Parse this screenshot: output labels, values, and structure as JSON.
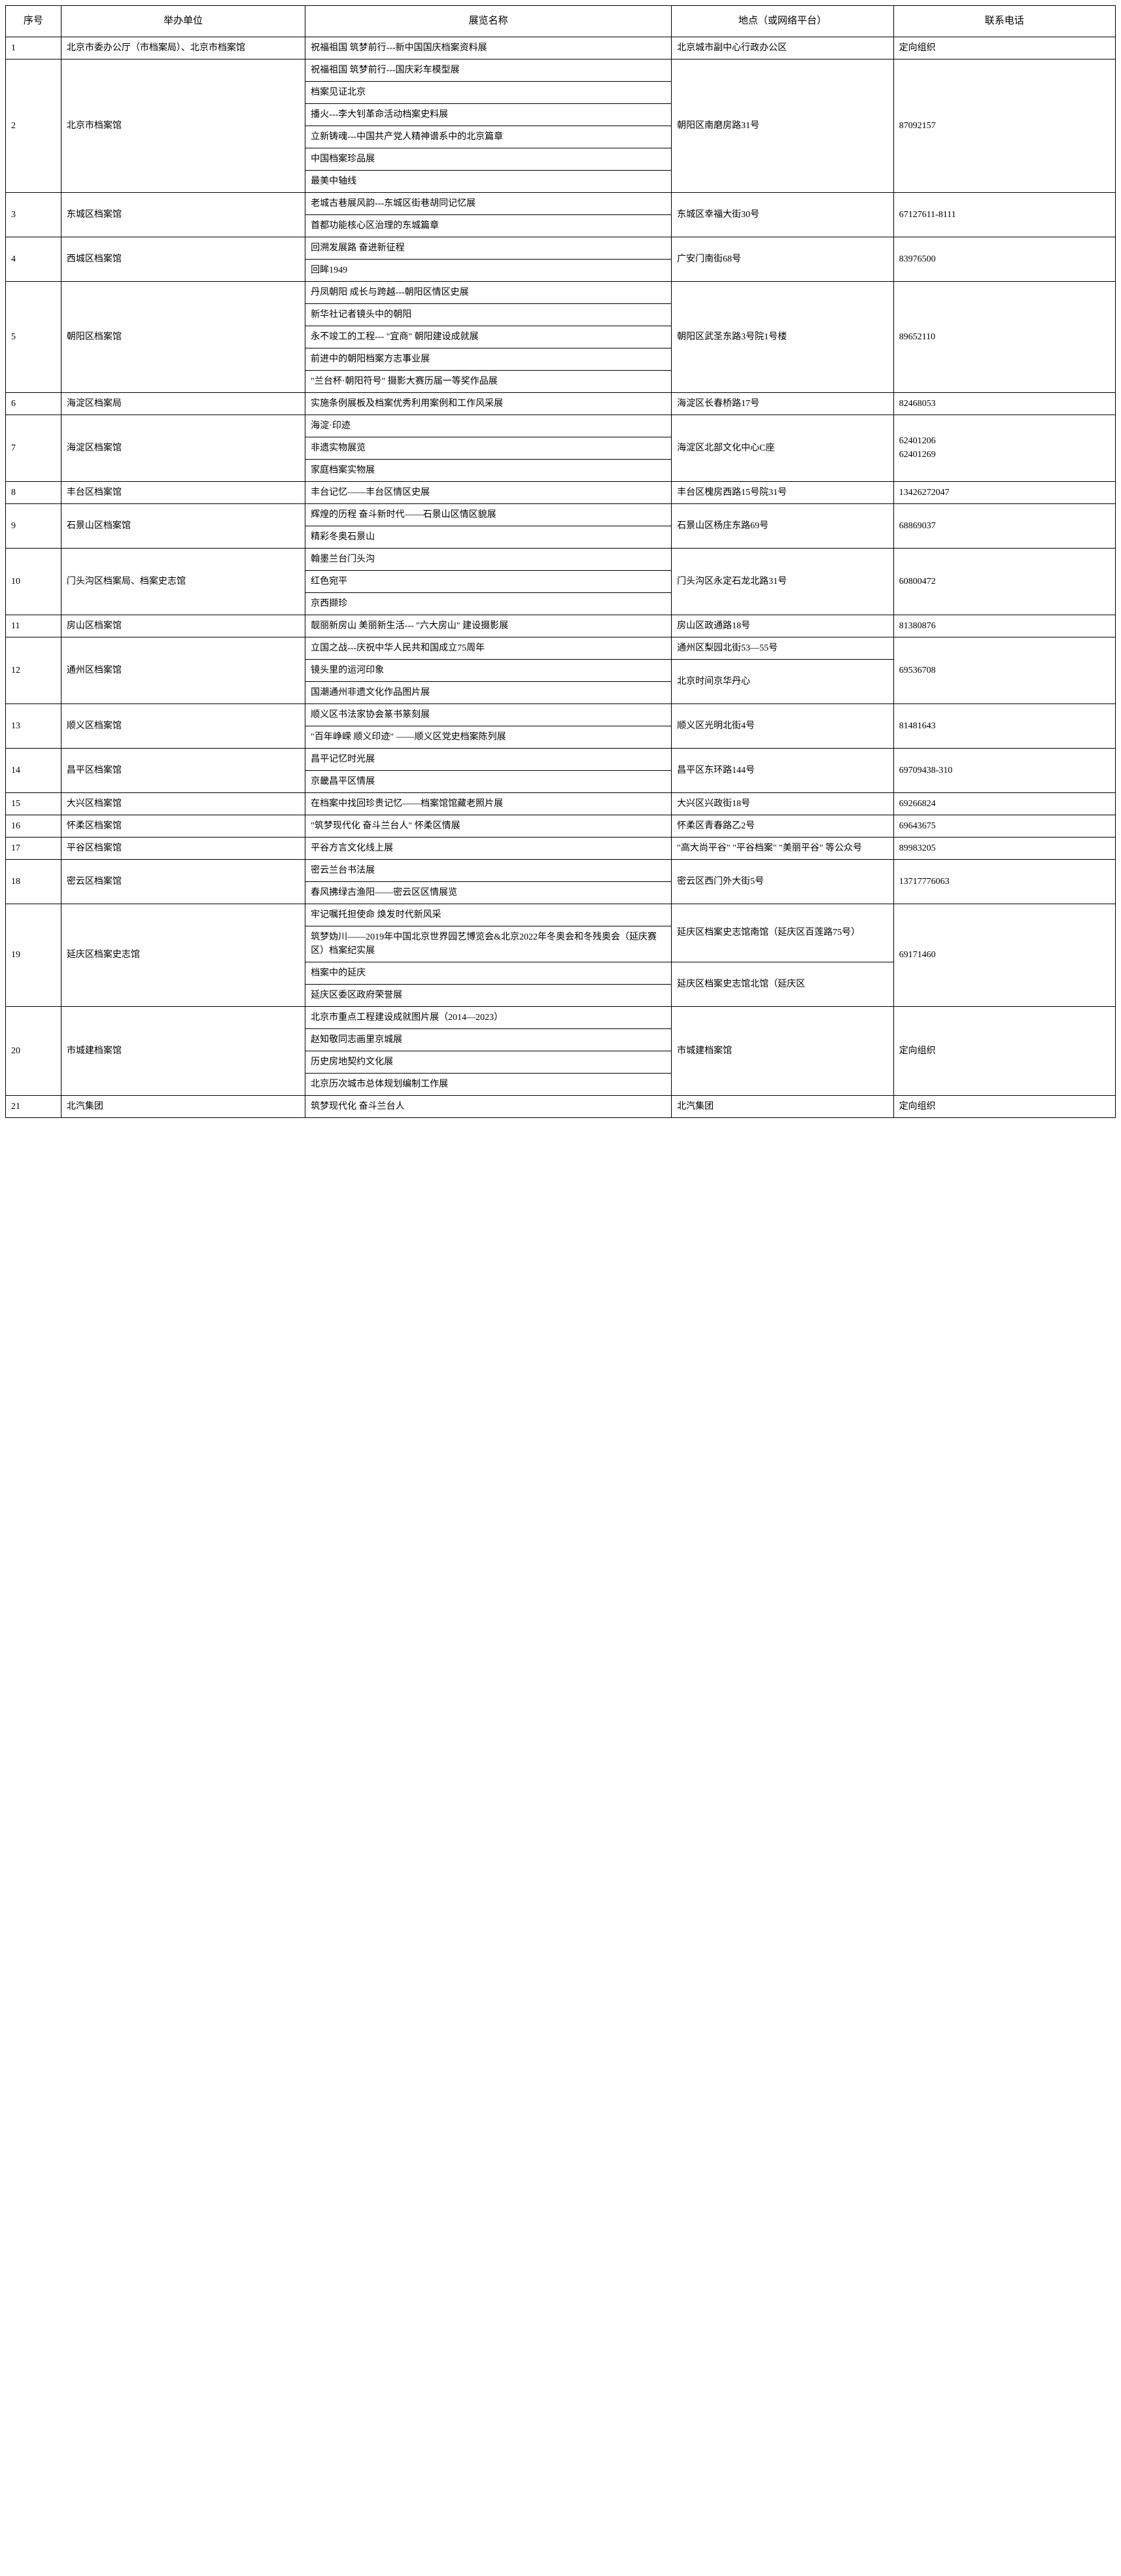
{
  "headers": {
    "seq": "序号",
    "org": "举办单位",
    "name": "展览名称",
    "location": "地点（或网络平台）",
    "tel": "联系电话"
  },
  "rows": [
    {
      "seq": "1",
      "org": "北京市委办公厅（市档案局）、北京市档案馆",
      "names": [
        "祝福祖国  筑梦前行---新中国国庆档案资料展"
      ],
      "location": "北京城市副中心行政办公区",
      "tel": "定向组织"
    },
    {
      "seq": "2",
      "org": "北京市档案馆",
      "names": [
        "祝福祖国  筑梦前行---国庆彩车模型展",
        "档案见证北京",
        "播火---李大钊革命活动档案史料展",
        "立新铸魂---中国共产党人精神谱系中的北京篇章",
        "中国档案珍品展",
        "最美中轴线"
      ],
      "location": "朝阳区南磨房路31号",
      "tel": "87092157"
    },
    {
      "seq": "3",
      "org": "东城区档案馆",
      "names": [
        "老城古巷展风韵---东城区街巷胡同记忆展",
        "首都功能核心区治理的东城篇章"
      ],
      "location": "东城区幸福大街30号",
      "tel": "67127611-8111"
    },
    {
      "seq": "4",
      "org": "西城区档案馆",
      "names": [
        "回溯发展路 奋进新征程",
        "回眸1949"
      ],
      "location": "广安门南街68号",
      "tel": "83976500"
    },
    {
      "seq": "5",
      "org": "朝阳区档案馆",
      "names": [
        "丹凤朝阳  成长与跨越---朝阳区情区史展",
        "新华社记者镜头中的朝阳",
        "永不竣工的工程--- \"宜商\" 朝阳建设成就展",
        "前进中的朝阳档案方志事业展",
        "\"兰台杯·朝阳符号\" 摄影大赛历届一等奖作品展"
      ],
      "location": "朝阳区武圣东路3号院1号楼",
      "tel": "89652110"
    },
    {
      "seq": "6",
      "org": "海淀区档案局",
      "names": [
        "实施条例展板及档案优秀利用案例和工作风采展"
      ],
      "location": "海淀区长春桥路17号",
      "tel": "82468053"
    },
    {
      "seq": "7",
      "org": "海淀区档案馆",
      "names": [
        "海淀·印迹",
        "非遗实物展览",
        "家庭档案实物展"
      ],
      "location": "海淀区北部文化中心C座",
      "tel": "62401206\n62401269"
    },
    {
      "seq": "8",
      "org": "丰台区档案馆",
      "names": [
        "丰台记忆——丰台区情区史展"
      ],
      "location": "丰台区槐房西路15号院31号",
      "tel": "13426272047"
    },
    {
      "seq": "9",
      "org": "石景山区档案馆",
      "names": [
        "辉煌的历程  奋斗新时代——石景山区情区貌展",
        "精彩冬奥石景山"
      ],
      "location": "石景山区杨庄东路69号",
      "tel": "68869037"
    },
    {
      "seq": "10",
      "org": "门头沟区档案局、档案史志馆",
      "names": [
        "翰墨兰台门头沟",
        "红色宛平",
        "京西撷珍"
      ],
      "location": "门头沟区永定石龙北路31号",
      "tel": "60800472"
    },
    {
      "seq": "11",
      "org": "房山区档案馆",
      "names": [
        "靓丽新房山  美丽新生活--- \"六大房山\" 建设摄影展"
      ],
      "location": "房山区政通路18号",
      "tel": "81380876"
    },
    {
      "seq": "12",
      "org": "通州区档案馆",
      "names": [
        "立国之战---庆祝中华人民共和国成立75周年",
        "镜头里的运河印象",
        "国潮通州非遗文化作品图片展"
      ],
      "locations": [
        "通州区梨园北街53—55号",
        "北京时间京华丹心"
      ],
      "tel": "69536708"
    },
    {
      "seq": "13",
      "org": "顺义区档案馆",
      "names": [
        "顺义区书法家协会篆书篆刻展",
        "\"百年峥嵘  顺义印迹\" ——顺义区党史档案陈列展"
      ],
      "location": "顺义区光明北街4号",
      "tel": "81481643"
    },
    {
      "seq": "14",
      "org": "昌平区档案馆",
      "names": [
        "昌平记忆时光展",
        "京畿昌平区情展"
      ],
      "location": "昌平区东环路144号",
      "tel": "69709438-310"
    },
    {
      "seq": "15",
      "org": "大兴区档案馆",
      "names": [
        "在档案中找回珍贵记忆——档案馆馆藏老照片展"
      ],
      "location": "大兴区兴政街18号",
      "tel": "69266824"
    },
    {
      "seq": "16",
      "org": "怀柔区档案馆",
      "names": [
        "\"筑梦现代化  奋斗兰台人\" 怀柔区情展"
      ],
      "location": "怀柔区青春路乙2号",
      "tel": "69643675"
    },
    {
      "seq": "17",
      "org": "平谷区档案馆",
      "names": [
        "平谷方言文化线上展"
      ],
      "location": "\"高大尚平谷\"  \"平谷档案\"  \"美丽平谷\" 等公众号",
      "tel": "89983205"
    },
    {
      "seq": "18",
      "org": "密云区档案馆",
      "names": [
        "密云兰台书法展",
        "春风拂绿古渔阳——密云区区情展览"
      ],
      "location": "密云区西门外大街5号",
      "tel": "13717776063"
    },
    {
      "seq": "19",
      "org": "延庆区档案史志馆",
      "names": [
        "牢记嘱托担使命  焕发时代新风采",
        "筑梦妫川——2019年中国北京世界园艺博览会&北京2022年冬奥会和冬残奥会（延庆赛区）档案纪实展",
        "档案中的延庆",
        "延庆区委区政府荣誉展"
      ],
      "locations": [
        "延庆区档案史志馆南馆（延庆区百莲路75号）",
        "延庆区档案史志馆北馆（延庆区"
      ],
      "tel": "69171460"
    },
    {
      "seq": "20",
      "org": "市城建档案馆",
      "names": [
        "北京市重点工程建设成就图片展（2014—2023）",
        "赵知敬同志画里京城展",
        "历史房地契约文化展",
        "北京历次城市总体规划编制工作展"
      ],
      "location": "市城建档案馆",
      "tel": "定向组织"
    },
    {
      "seq": "21",
      "org": "北汽集团",
      "names": [
        "筑梦现代化  奋斗兰台人"
      ],
      "location": "北汽集团",
      "tel": "定向组织"
    }
  ]
}
